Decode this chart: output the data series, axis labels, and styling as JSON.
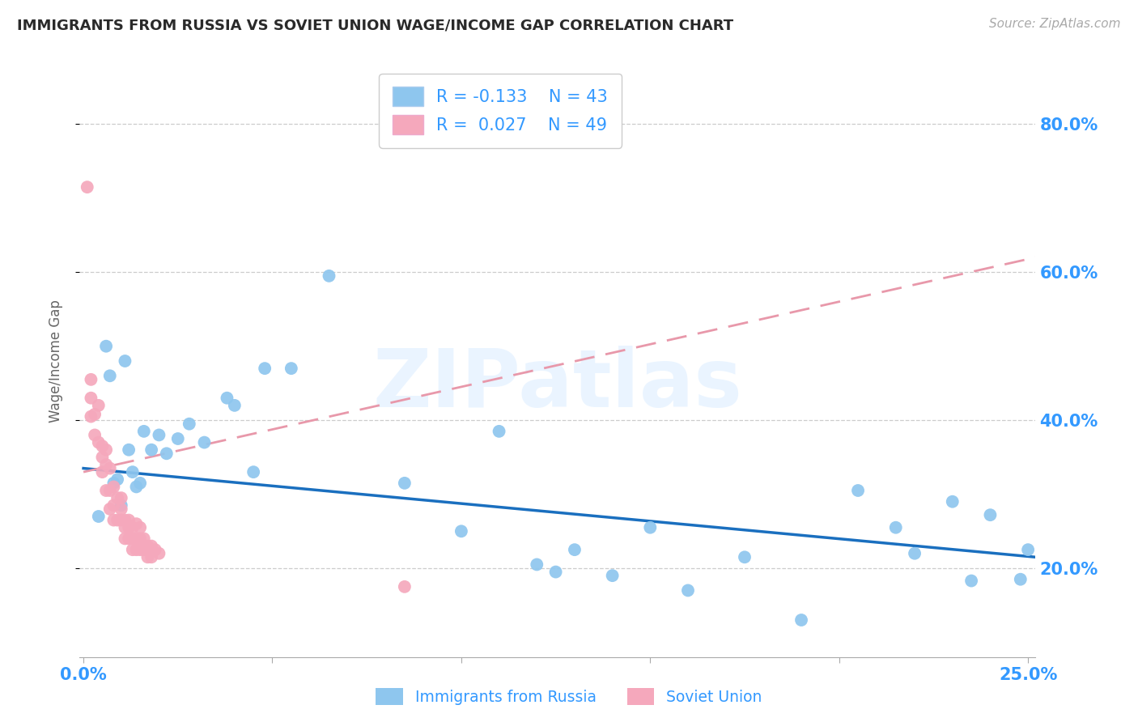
{
  "title": "IMMIGRANTS FROM RUSSIA VS SOVIET UNION WAGE/INCOME GAP CORRELATION CHART",
  "source": "Source: ZipAtlas.com",
  "ylabel": "Wage/Income Gap",
  "ytick_labels": [
    "20.0%",
    "40.0%",
    "60.0%",
    "80.0%"
  ],
  "ytick_values": [
    0.2,
    0.4,
    0.6,
    0.8
  ],
  "xlim": [
    -0.001,
    0.252
  ],
  "ylim": [
    0.08,
    0.88
  ],
  "legend_R_blue": "-0.133",
  "legend_N_blue": "43",
  "legend_R_pink": "0.027",
  "legend_N_pink": "49",
  "label_blue": "Immigrants from Russia",
  "label_pink": "Soviet Union",
  "watermark": "ZIPatlas",
  "color_blue": "#8EC6EE",
  "color_blue_line": "#1A6FBF",
  "color_pink": "#F5A8BC",
  "color_pink_line": "#E898AA",
  "color_axis_text": "#3399FF",
  "blue_line_x0": 0.0,
  "blue_line_y0": 0.335,
  "blue_line_x1": 0.252,
  "blue_line_y1": 0.215,
  "pink_line_x0": 0.0,
  "pink_line_y0": 0.33,
  "pink_line_x1": 0.252,
  "pink_line_y1": 0.62,
  "blue_x": [
    0.004,
    0.006,
    0.007,
    0.008,
    0.009,
    0.01,
    0.011,
    0.012,
    0.013,
    0.014,
    0.015,
    0.016,
    0.018,
    0.02,
    0.022,
    0.025,
    0.028,
    0.032,
    0.038,
    0.04,
    0.045,
    0.048,
    0.055,
    0.065,
    0.085,
    0.1,
    0.11,
    0.12,
    0.125,
    0.13,
    0.14,
    0.15,
    0.16,
    0.175,
    0.19,
    0.205,
    0.215,
    0.22,
    0.23,
    0.235,
    0.24,
    0.248,
    0.25
  ],
  "blue_y": [
    0.27,
    0.5,
    0.46,
    0.315,
    0.32,
    0.285,
    0.48,
    0.36,
    0.33,
    0.31,
    0.315,
    0.385,
    0.36,
    0.38,
    0.355,
    0.375,
    0.395,
    0.37,
    0.43,
    0.42,
    0.33,
    0.47,
    0.47,
    0.595,
    0.315,
    0.25,
    0.385,
    0.205,
    0.195,
    0.225,
    0.19,
    0.255,
    0.17,
    0.215,
    0.13,
    0.305,
    0.255,
    0.22,
    0.29,
    0.183,
    0.272,
    0.185,
    0.225
  ],
  "pink_x": [
    0.001,
    0.002,
    0.002,
    0.002,
    0.003,
    0.003,
    0.004,
    0.004,
    0.005,
    0.005,
    0.005,
    0.006,
    0.006,
    0.006,
    0.007,
    0.007,
    0.007,
    0.008,
    0.008,
    0.008,
    0.009,
    0.009,
    0.01,
    0.01,
    0.01,
    0.011,
    0.011,
    0.011,
    0.012,
    0.012,
    0.012,
    0.013,
    0.013,
    0.013,
    0.014,
    0.014,
    0.014,
    0.015,
    0.015,
    0.015,
    0.016,
    0.016,
    0.017,
    0.017,
    0.018,
    0.018,
    0.019,
    0.02,
    0.085
  ],
  "pink_y": [
    0.715,
    0.455,
    0.43,
    0.405,
    0.408,
    0.38,
    0.42,
    0.37,
    0.365,
    0.35,
    0.33,
    0.36,
    0.34,
    0.305,
    0.335,
    0.305,
    0.28,
    0.31,
    0.285,
    0.265,
    0.295,
    0.265,
    0.295,
    0.28,
    0.265,
    0.265,
    0.255,
    0.24,
    0.265,
    0.255,
    0.24,
    0.255,
    0.24,
    0.225,
    0.26,
    0.24,
    0.225,
    0.255,
    0.24,
    0.225,
    0.24,
    0.225,
    0.23,
    0.215,
    0.23,
    0.215,
    0.225,
    0.22,
    0.175
  ]
}
